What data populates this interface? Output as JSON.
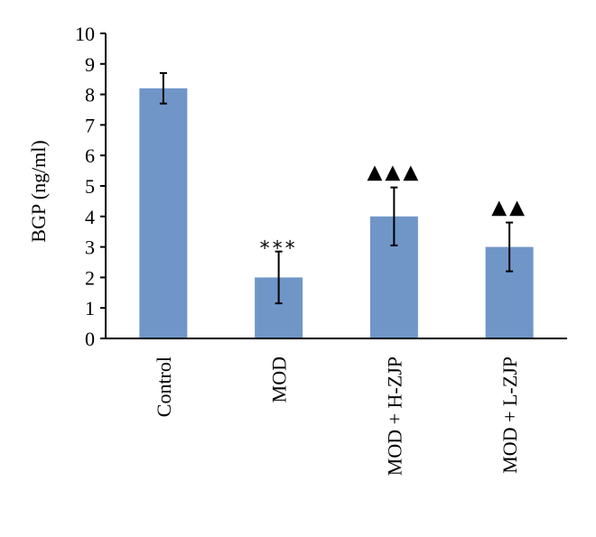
{
  "chart_data": {
    "type": "bar",
    "title": "",
    "xlabel": "",
    "ylabel": "BGP (ng/ml)",
    "ylim": [
      0,
      10
    ],
    "yticks": [
      0,
      1,
      2,
      3,
      4,
      5,
      6,
      7,
      8,
      9,
      10
    ],
    "grid": false,
    "legend": "none",
    "bar_color": "#7096C8",
    "categories": [
      "Control",
      "MOD",
      "MOD + H-ZJP",
      "MOD + L-ZJP"
    ],
    "values": [
      8.2,
      2.0,
      4.0,
      3.0
    ],
    "error_low": [
      7.7,
      1.15,
      3.05,
      2.2
    ],
    "error_high": [
      8.7,
      2.85,
      4.95,
      3.8
    ],
    "annotations": [
      "",
      "***",
      "▲▲▲",
      "▲▲"
    ]
  }
}
